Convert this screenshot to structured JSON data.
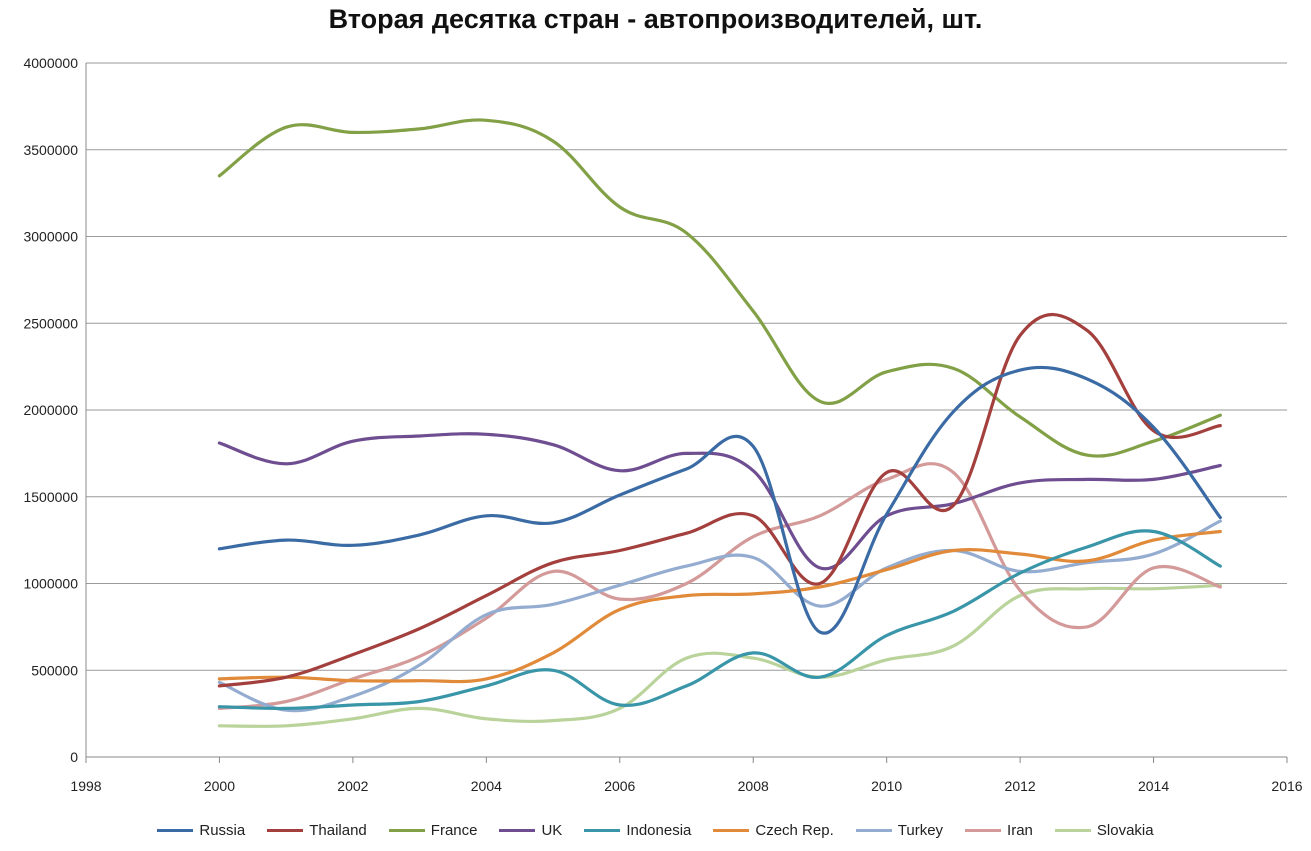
{
  "chart_data": {
    "type": "line",
    "title": "Вторая десятка стран - автопроизводителей, шт.",
    "xlabel": "",
    "ylabel": "",
    "xlim": [
      1998,
      2016
    ],
    "ylim": [
      0,
      4000000
    ],
    "x_ticks": [
      "1998",
      "2000",
      "2002",
      "2004",
      "2006",
      "2008",
      "2010",
      "2012",
      "2014",
      "2016"
    ],
    "y_ticks": [
      "0",
      "500000",
      "1000000",
      "1500000",
      "2000000",
      "2500000",
      "3000000",
      "3500000",
      "4000000"
    ],
    "grid": "horizontal",
    "legend_position": "bottom",
    "x": [
      2000,
      2001,
      2002,
      2003,
      2004,
      2005,
      2006,
      2007,
      2008,
      2009,
      2010,
      2011,
      2012,
      2013,
      2014,
      2015
    ],
    "series": [
      {
        "name": "Russia",
        "color": "#3B6BA5",
        "values": [
          1200000,
          1250000,
          1220000,
          1280000,
          1390000,
          1350000,
          1510000,
          1660000,
          1790000,
          720000,
          1400000,
          1990000,
          2230000,
          2180000,
          1900000,
          1380000
        ]
      },
      {
        "name": "Thailand",
        "color": "#A3403D",
        "values": [
          410000,
          460000,
          590000,
          740000,
          930000,
          1120000,
          1190000,
          1290000,
          1390000,
          1000000,
          1640000,
          1450000,
          2430000,
          2460000,
          1880000,
          1910000
        ]
      },
      {
        "name": "France",
        "color": "#82A046",
        "values": [
          3350000,
          3630000,
          3600000,
          3620000,
          3670000,
          3550000,
          3170000,
          3020000,
          2570000,
          2050000,
          2220000,
          2240000,
          1960000,
          1740000,
          1820000,
          1970000
        ]
      },
      {
        "name": "UK",
        "color": "#6E4E91",
        "values": [
          1810000,
          1690000,
          1820000,
          1850000,
          1860000,
          1800000,
          1650000,
          1750000,
          1650000,
          1090000,
          1390000,
          1460000,
          1580000,
          1600000,
          1600000,
          1680000
        ]
      },
      {
        "name": "Indonesia",
        "color": "#3995A8",
        "values": [
          290000,
          280000,
          300000,
          320000,
          410000,
          500000,
          300000,
          410000,
          600000,
          460000,
          700000,
          840000,
          1060000,
          1210000,
          1300000,
          1100000
        ]
      },
      {
        "name": "Czech Rep.",
        "color": "#E08A3A",
        "values": [
          450000,
          460000,
          440000,
          440000,
          450000,
          600000,
          850000,
          930000,
          940000,
          980000,
          1080000,
          1190000,
          1170000,
          1130000,
          1250000,
          1300000
        ]
      },
      {
        "name": "Turkey",
        "color": "#94ACD0",
        "values": [
          430000,
          270000,
          350000,
          530000,
          820000,
          880000,
          990000,
          1100000,
          1150000,
          870000,
          1090000,
          1190000,
          1070000,
          1120000,
          1170000,
          1360000
        ]
      },
      {
        "name": "Iran",
        "color": "#D49A9A",
        "values": [
          280000,
          320000,
          450000,
          580000,
          800000,
          1070000,
          910000,
          1000000,
          1270000,
          1390000,
          1600000,
          1640000,
          960000,
          750000,
          1090000,
          980000
        ]
      },
      {
        "name": "Slovakia",
        "color": "#B9D39B",
        "values": [
          180000,
          180000,
          220000,
          280000,
          220000,
          210000,
          280000,
          570000,
          570000,
          460000,
          560000,
          640000,
          930000,
          970000,
          970000,
          990000
        ]
      }
    ]
  }
}
